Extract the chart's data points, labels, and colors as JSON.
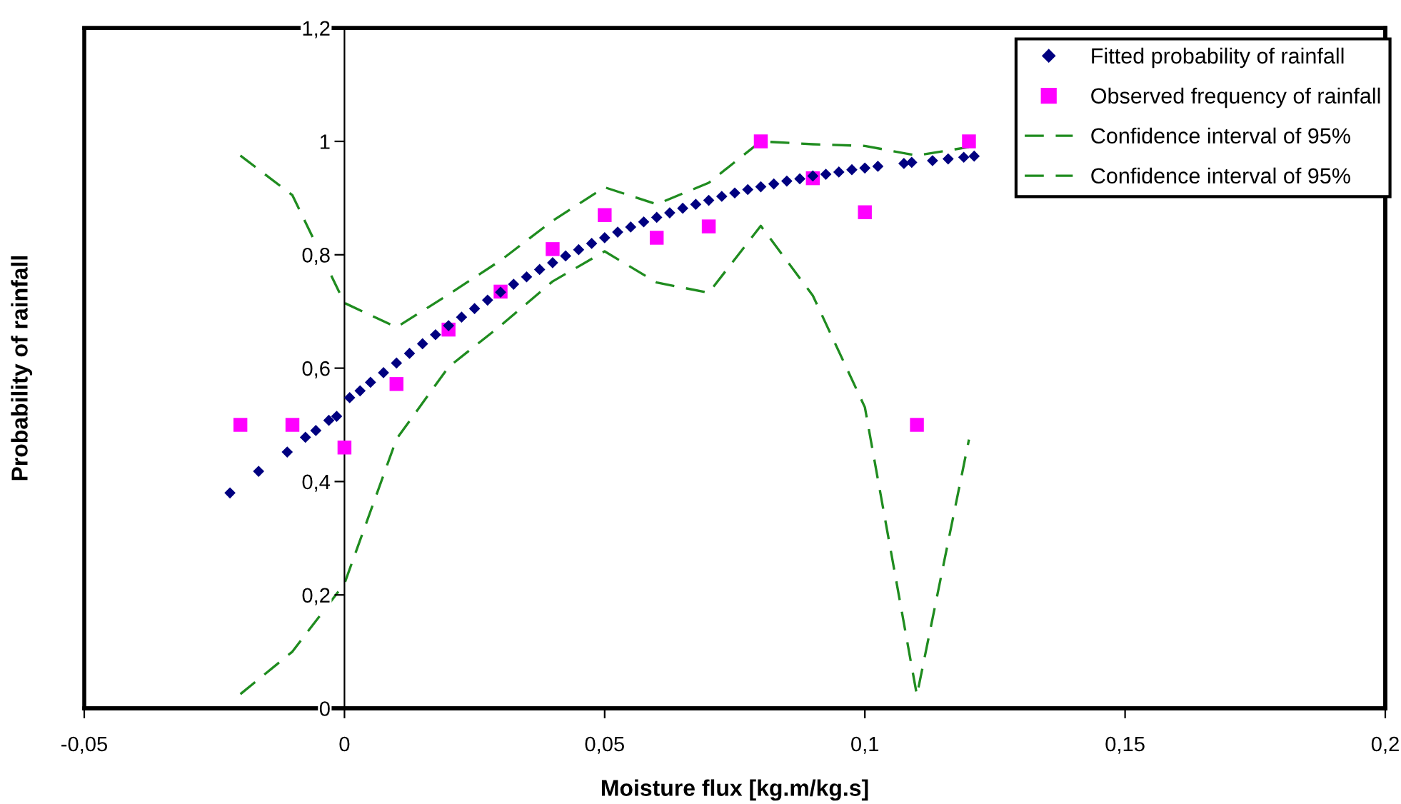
{
  "chart_data": {
    "type": "scatter",
    "xlabel": "Moisture flux [kg.m/kg.s]",
    "ylabel": "Probability of rainfall",
    "xlim": [
      -0.05,
      0.2
    ],
    "ylim": [
      0,
      1.2
    ],
    "xticks": [
      {
        "value": -0.05,
        "label": "-0,05"
      },
      0,
      {
        "value": 0.05,
        "label": "0,05"
      },
      {
        "value": 0.1,
        "label": "0,1"
      },
      {
        "value": 0.15,
        "label": "0,15"
      },
      {
        "value": 0.2,
        "label": "0,2"
      }
    ],
    "yticks": [
      0,
      {
        "value": 0.2,
        "label": "0,2"
      },
      {
        "value": 0.4,
        "label": "0,4"
      },
      {
        "value": 0.6,
        "label": "0,6"
      },
      {
        "value": 0.8,
        "label": "0,8"
      },
      1,
      {
        "value": 1.2,
        "label": "1,2"
      }
    ],
    "grid": false,
    "legend": "top right",
    "series": [
      {
        "name": "Fitted probability of rainfall",
        "type": "scatter",
        "marker": "diamond",
        "color": "#000080",
        "x": [
          -0.022,
          -0.0165,
          -0.011,
          -0.0075,
          -0.0055,
          -0.003,
          -0.0015,
          0.001,
          0.003,
          0.005,
          0.0075,
          0.01,
          0.0125,
          0.015,
          0.0175,
          0.02,
          0.0225,
          0.025,
          0.0275,
          0.03,
          0.0325,
          0.035,
          0.0375,
          0.04,
          0.0425,
          0.045,
          0.0475,
          0.05,
          0.0525,
          0.055,
          0.0575,
          0.06,
          0.0625,
          0.065,
          0.0675,
          0.07,
          0.0725,
          0.075,
          0.0775,
          0.08,
          0.0825,
          0.085,
          0.0875,
          0.09,
          0.0925,
          0.095,
          0.0975,
          0.1,
          0.1025,
          0.1075,
          0.109,
          0.113,
          0.116,
          0.119,
          0.121
        ],
        "values": [
          0.38,
          0.418,
          0.452,
          0.478,
          0.49,
          0.508,
          0.515,
          0.548,
          0.56,
          0.575,
          0.592,
          0.609,
          0.626,
          0.643,
          0.659,
          0.675,
          0.69,
          0.705,
          0.72,
          0.734,
          0.748,
          0.761,
          0.774,
          0.786,
          0.798,
          0.809,
          0.82,
          0.83,
          0.84,
          0.849,
          0.858,
          0.866,
          0.874,
          0.882,
          0.889,
          0.896,
          0.903,
          0.909,
          0.915,
          0.92,
          0.925,
          0.93,
          0.934,
          0.939,
          0.942,
          0.946,
          0.95,
          0.953,
          0.956,
          0.961,
          0.963,
          0.966,
          0.969,
          0.972,
          0.974
        ]
      },
      {
        "name": "Observed frequency of rainfall",
        "type": "scatter",
        "marker": "square",
        "color": "#ff00ff",
        "x": [
          -0.02,
          -0.01,
          0,
          0.01,
          0.02,
          0.03,
          0.04,
          0.05,
          0.06,
          0.07,
          0.08,
          0.09,
          0.1,
          0.11,
          0.12
        ],
        "values": [
          0.5,
          0.5,
          0.46,
          0.572,
          0.668,
          0.735,
          0.81,
          0.87,
          0.83,
          0.85,
          1.0,
          0.935,
          0.875,
          0.5,
          1.0
        ]
      },
      {
        "name": "Confidence interval of 95%",
        "type": "line",
        "marker": "none",
        "line_style": "dashed",
        "color": "#1f8c1f",
        "x": [
          -0.02,
          -0.01,
          0,
          0.01,
          0.02,
          0.03,
          0.04,
          0.05,
          0.06,
          0.07,
          0.08,
          0.09,
          0.1,
          0.11,
          0.12
        ],
        "values": [
          0.975,
          0.905,
          0.715,
          0.672,
          0.73,
          0.79,
          0.86,
          0.919,
          0.889,
          0.927,
          1.0,
          0.995,
          0.992,
          0.975,
          0.99
        ]
      },
      {
        "name": "Confidence interval of 95%",
        "type": "line",
        "marker": "none",
        "line_style": "dashed",
        "color": "#1f8c1f",
        "x": [
          -0.02,
          -0.01,
          0,
          0.01,
          0.02,
          0.03,
          0.04,
          0.05,
          0.06,
          0.07,
          0.08,
          0.09,
          0.1,
          0.11,
          0.12
        ],
        "values": [
          0.025,
          0.1,
          0.22,
          0.475,
          0.602,
          0.675,
          0.753,
          0.806,
          0.751,
          0.733,
          0.851,
          0.728,
          0.531,
          0.023,
          0.474
        ]
      }
    ]
  }
}
